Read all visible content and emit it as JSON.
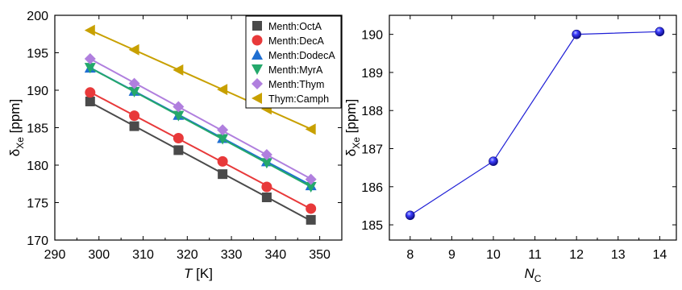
{
  "chart_data": [
    {
      "type": "line",
      "title": "",
      "xlabel": {
        "var": "T",
        "unit": " [K]"
      },
      "ylabel": {
        "sym": "δ",
        "sub": "Xe",
        "unit": " [ppm]"
      },
      "xlim": [
        290,
        355
      ],
      "ylim": [
        170,
        200
      ],
      "xticks": [
        290,
        300,
        310,
        320,
        330,
        340,
        350
      ],
      "yticks": [
        170,
        175,
        180,
        185,
        190,
        195,
        200
      ],
      "grid": false,
      "legend_position": "top-right",
      "x": [
        298,
        308,
        318,
        328,
        338,
        348
      ],
      "series": [
        {
          "name": "Menth:OctA",
          "marker": "square",
          "color": "#4a4a4a",
          "values": [
            188.5,
            185.2,
            182.0,
            178.8,
            175.7,
            172.7
          ]
        },
        {
          "name": "Menth:DecA",
          "marker": "circle",
          "color": "#e8393a",
          "values": [
            189.7,
            186.6,
            183.6,
            180.5,
            177.1,
            174.2
          ]
        },
        {
          "name": "Menth:DodecA",
          "marker": "triangle-up",
          "color": "#1f6fd1",
          "values": [
            193.0,
            189.9,
            186.7,
            183.6,
            180.5,
            177.3
          ]
        },
        {
          "name": "Menth:MyrA",
          "marker": "triangle-down",
          "color": "#24a86b",
          "values": [
            193.0,
            189.8,
            186.6,
            183.5,
            180.3,
            177.1
          ]
        },
        {
          "name": "Menth:Thym",
          "marker": "diamond",
          "color": "#b07fde",
          "values": [
            194.2,
            190.9,
            187.8,
            184.7,
            181.4,
            178.1
          ]
        },
        {
          "name": "Thym:Camph",
          "marker": "triangle-left",
          "color": "#c8a000",
          "values": [
            198.0,
            195.4,
            192.7,
            190.1,
            187.5,
            184.8
          ]
        }
      ],
      "fit_lines": true
    },
    {
      "type": "line",
      "title": "",
      "xlabel": {
        "var": "N",
        "sub": "C"
      },
      "ylabel": {
        "sym": "δ",
        "sub": "Xe",
        "unit": " [ppm]"
      },
      "xlim": [
        7.5,
        14.4
      ],
      "ylim": [
        184.6,
        190.5
      ],
      "xticks": [
        8,
        9,
        10,
        11,
        12,
        13,
        14
      ],
      "yticks": [
        185,
        186,
        187,
        188,
        189,
        190
      ],
      "grid": false,
      "x": [
        8,
        10,
        12,
        14
      ],
      "series": [
        {
          "marker": "sphere",
          "color": "#1f1fd6",
          "values": [
            185.25,
            186.67,
            190.0,
            190.07
          ]
        }
      ]
    }
  ]
}
